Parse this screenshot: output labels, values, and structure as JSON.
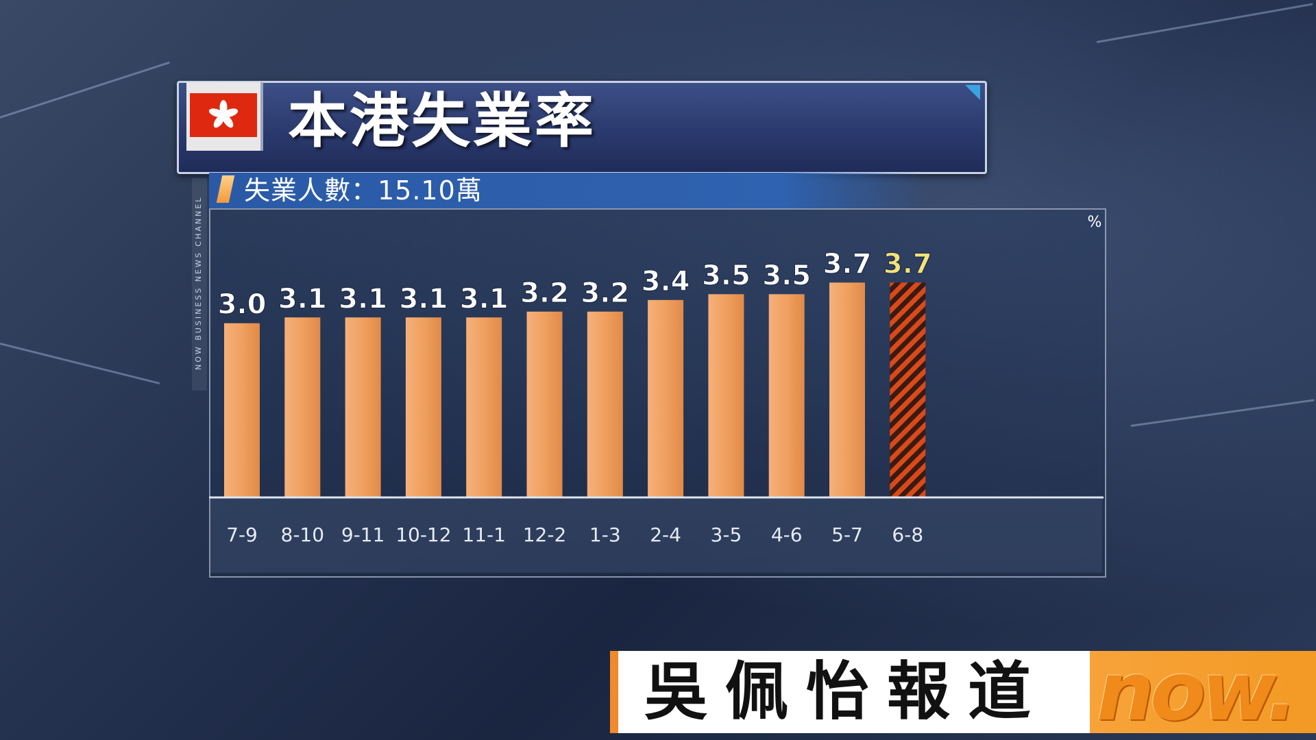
{
  "title_bar": {
    "title": "本港失業率"
  },
  "subtitle": "失業人數：15.10萬",
  "channel_label": "NOW BUSINESS NEWS CHANNEL",
  "reporter": {
    "name": "吳佩怡報道"
  },
  "logo": {
    "text": "now."
  },
  "colors": {
    "bar": "#f0a060",
    "bar_highlight": "#d94a1a",
    "highlight_label": "#f2e27a",
    "label": "#ffffff"
  },
  "chart_data": {
    "type": "bar",
    "unit_label": "%",
    "categories": [
      "7-9",
      "8-10",
      "9-11",
      "10-12",
      "11-1",
      "12-2",
      "1-3",
      "2-4",
      "3-5",
      "4-6",
      "5-7",
      "6-8"
    ],
    "values": [
      3.0,
      3.1,
      3.1,
      3.1,
      3.1,
      3.2,
      3.2,
      3.4,
      3.5,
      3.5,
      3.7,
      3.7
    ],
    "value_labels": [
      "3.0",
      "3.1",
      "3.1",
      "3.1",
      "3.1",
      "3.2",
      "3.2",
      "3.4",
      "3.5",
      "3.5",
      "3.7",
      "3.7"
    ],
    "highlight_index": 11,
    "ylim": [
      0,
      3.7
    ],
    "grid": false
  }
}
